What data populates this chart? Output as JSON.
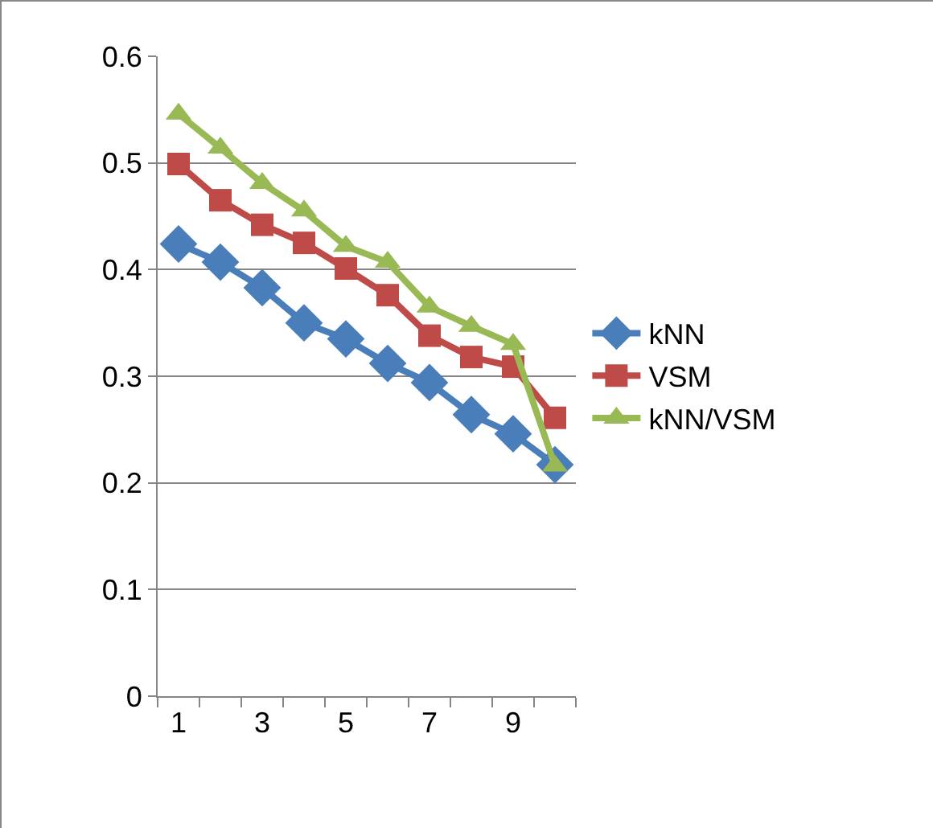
{
  "chart_data": {
    "type": "line",
    "categories": [
      "1",
      null,
      "3",
      null,
      "5",
      null,
      "7",
      null,
      "9",
      null
    ],
    "series": [
      {
        "name": "kNN",
        "color": "#4a7ebb",
        "marker": "diamond",
        "values": [
          0.424,
          0.407,
          0.383,
          0.35,
          0.335,
          0.312,
          0.294,
          0.264,
          0.246,
          0.217
        ]
      },
      {
        "name": "VSM",
        "color": "#be4b48",
        "marker": "square",
        "values": [
          0.499,
          0.465,
          0.442,
          0.425,
          0.401,
          0.376,
          0.338,
          0.318,
          0.309,
          0.261
        ]
      },
      {
        "name": "kNN/VSM",
        "color": "#98b954",
        "marker": "triangle",
        "values": [
          0.546,
          0.514,
          0.481,
          0.455,
          0.422,
          0.407,
          0.365,
          0.347,
          0.33,
          0.216
        ]
      }
    ],
    "ylim": [
      0,
      0.6
    ],
    "yticks": [
      0,
      0.1,
      0.2,
      0.3,
      0.4,
      0.5,
      0.6
    ],
    "grid": "y",
    "legend": "right"
  }
}
